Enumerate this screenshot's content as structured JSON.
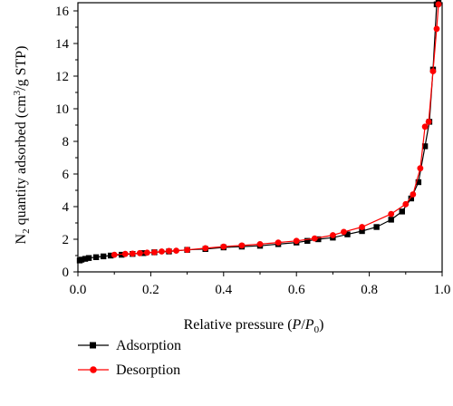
{
  "chart_data": {
    "type": "line",
    "xlabel": {
      "main": "Relative pressure (",
      "var1": "P",
      "slash": "/",
      "var2": "P",
      "sub": "0",
      "close": ")"
    },
    "ylabel": {
      "pre": "N",
      "sub": "2",
      "mid": " quantity adsorbed (cm",
      "sup": "3",
      "post": "/g STP)"
    },
    "xlim": [
      0,
      1.0
    ],
    "ylim": [
      0,
      16.5
    ],
    "x_ticks": [
      "0.0",
      "0.2",
      "0.4",
      "0.6",
      "0.8",
      "1.0"
    ],
    "y_ticks": [
      "0",
      "2",
      "4",
      "6",
      "8",
      "10",
      "12",
      "14",
      "16"
    ],
    "grid": false,
    "legend_position": "bottom-left",
    "series": [
      {
        "name": "Adsorption",
        "color": "#000000",
        "marker": "square",
        "x": [
          0.005,
          0.01,
          0.02,
          0.03,
          0.05,
          0.07,
          0.09,
          0.12,
          0.15,
          0.18,
          0.21,
          0.25,
          0.3,
          0.35,
          0.4,
          0.45,
          0.5,
          0.55,
          0.6,
          0.63,
          0.66,
          0.7,
          0.74,
          0.78,
          0.82,
          0.86,
          0.89,
          0.915,
          0.935,
          0.953,
          0.965,
          0.975,
          0.985,
          0.99
        ],
        "y": [
          0.7,
          0.75,
          0.8,
          0.85,
          0.9,
          0.95,
          1.0,
          1.05,
          1.1,
          1.15,
          1.2,
          1.25,
          1.35,
          1.4,
          1.5,
          1.55,
          1.6,
          1.7,
          1.8,
          1.9,
          2.0,
          2.1,
          2.3,
          2.5,
          2.75,
          3.2,
          3.7,
          4.5,
          5.5,
          7.7,
          9.2,
          12.4,
          16.4,
          16.5
        ]
      },
      {
        "name": "Desorption",
        "color": "#ff0000",
        "marker": "circle",
        "x": [
          0.1,
          0.13,
          0.15,
          0.17,
          0.19,
          0.21,
          0.23,
          0.25,
          0.27,
          0.3,
          0.35,
          0.4,
          0.45,
          0.5,
          0.55,
          0.6,
          0.65,
          0.7,
          0.73,
          0.78,
          0.86,
          0.9,
          0.92,
          0.94,
          0.953,
          0.963,
          0.975,
          0.985,
          0.99
        ],
        "y": [
          1.05,
          1.1,
          1.12,
          1.15,
          1.18,
          1.2,
          1.25,
          1.28,
          1.3,
          1.35,
          1.45,
          1.55,
          1.62,
          1.7,
          1.8,
          1.9,
          2.05,
          2.25,
          2.45,
          2.75,
          3.55,
          4.15,
          4.75,
          6.35,
          8.9,
          9.2,
          12.3,
          14.9,
          16.4
        ]
      }
    ]
  }
}
